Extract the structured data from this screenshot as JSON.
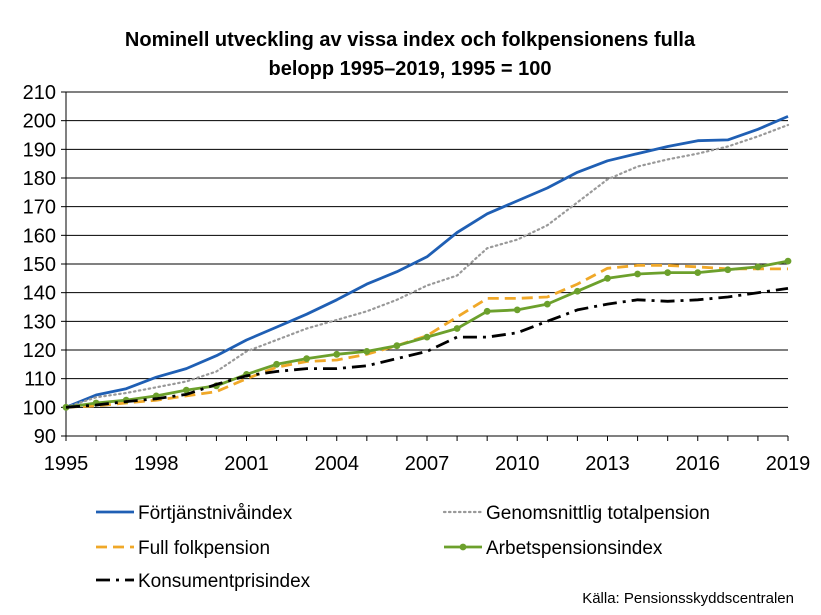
{
  "chart_data": {
    "type": "line",
    "title_line1": "Nominell utveckling av vissa index och folkpensionens fulla",
    "title_line2": "belopp 1995–2019, 1995 = 100",
    "xlabel": "",
    "ylabel": "",
    "ylim": [
      90,
      210
    ],
    "ytick_labels": [
      "90",
      "100",
      "110",
      "120",
      "130",
      "140",
      "150",
      "160",
      "170",
      "180",
      "190",
      "200",
      "210"
    ],
    "xlim": [
      1995,
      2019
    ],
    "xtick_labels": [
      "1995",
      "1998",
      "2001",
      "2004",
      "2007",
      "2010",
      "2013",
      "2016",
      "2019"
    ],
    "grid": "horizontal",
    "legend_position": "bottom",
    "x": [
      1995,
      1996,
      1997,
      1998,
      1999,
      2000,
      2001,
      2002,
      2003,
      2004,
      2005,
      2006,
      2007,
      2008,
      2009,
      2010,
      2011,
      2012,
      2013,
      2014,
      2015,
      2016,
      2017,
      2018,
      2019
    ],
    "series": [
      {
        "name": "Förtjänstnivåindex",
        "color": "#1f5fb4",
        "style": "solid",
        "values": [
          100,
          104.3,
          106.5,
          110.5,
          113.5,
          118,
          123.5,
          128,
          132.5,
          137.5,
          143,
          147.3,
          152.5,
          161,
          167.5,
          172,
          176.5,
          182,
          186,
          188.5,
          191,
          193,
          193.3,
          197,
          201.5
        ]
      },
      {
        "name": "Genomsnittlig totalpension",
        "color": "#999999",
        "style": "dotted",
        "values": [
          100,
          103.5,
          105,
          107,
          109,
          112.5,
          119.5,
          123.5,
          127.5,
          130.5,
          133.5,
          137.5,
          142.5,
          146,
          155.5,
          158.5,
          163.5,
          171.5,
          179.5,
          184,
          186.5,
          188.5,
          191,
          194.5,
          198.5
        ]
      },
      {
        "name": "Full folkpension",
        "color": "#f0a828",
        "style": "dashed",
        "values": [
          100,
          100.5,
          101.5,
          102.5,
          104,
          105.5,
          110,
          114,
          116,
          116.5,
          118.5,
          121.5,
          125,
          131.5,
          138,
          138,
          138.5,
          143,
          148.5,
          149.5,
          149.5,
          149,
          148.3,
          148.3,
          148.3
        ]
      },
      {
        "name": "Arbetspensionsindex",
        "color": "#6ca02c",
        "style": "solid-markers",
        "values": [
          100,
          101.5,
          102.5,
          104,
          106,
          107.5,
          111.5,
          115,
          117,
          118.5,
          119.5,
          121.5,
          124.5,
          127.5,
          133.5,
          134,
          136,
          140.5,
          145,
          146.5,
          147,
          147,
          148,
          149,
          151
        ]
      },
      {
        "name": "Konsumentprisindex",
        "color": "#000000",
        "style": "dash-dot",
        "values": [
          100,
          100.8,
          102,
          103,
          104.5,
          108,
          111,
          112.5,
          113.5,
          113.5,
          114.5,
          117,
          119.5,
          124.5,
          124.5,
          126,
          130,
          134,
          136,
          137.5,
          137,
          137.5,
          138.5,
          140,
          141.5
        ]
      }
    ],
    "source": "Källa: Pensionsskyddscentralen"
  }
}
